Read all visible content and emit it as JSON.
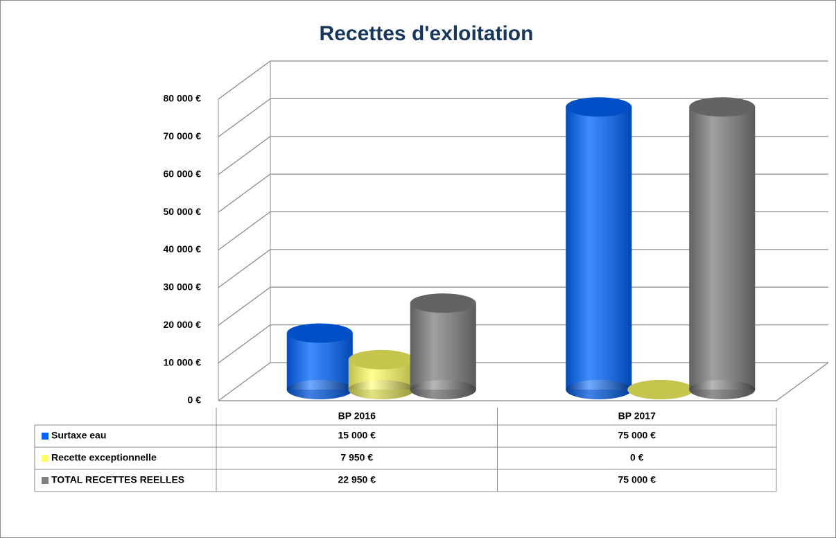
{
  "chart_data": {
    "type": "bar3d",
    "title": "Recettes d'exloitation",
    "categories": [
      "BP 2016",
      "BP 2017"
    ],
    "series": [
      {
        "name": "Surtaxe eau",
        "color": "#0066ff",
        "values": [
          15000,
          75000
        ],
        "value_labels": [
          "15 000 €",
          "75 000 €"
        ]
      },
      {
        "name": "Recette exceptionnelle",
        "color": "#ffff66",
        "values": [
          7950,
          0
        ],
        "value_labels": [
          "7 950 €",
          "0 €"
        ]
      },
      {
        "name": "TOTAL RECETTES REELLES",
        "color": "#808080",
        "values": [
          22950,
          75000
        ],
        "value_labels": [
          "22 950 €",
          "75 000 €"
        ]
      }
    ],
    "ylim": [
      0,
      80000
    ],
    "yticks": [
      {
        "value": 0,
        "label": "0 €"
      },
      {
        "value": 10000,
        "label": "10 000 €"
      },
      {
        "value": 20000,
        "label": "20 000 €"
      },
      {
        "value": 30000,
        "label": "30 000 €"
      },
      {
        "value": 40000,
        "label": "40 000 €"
      },
      {
        "value": 50000,
        "label": "50 000 €"
      },
      {
        "value": 60000,
        "label": "60 000 €"
      },
      {
        "value": 70000,
        "label": "70 000 €"
      },
      {
        "value": 80000,
        "label": "80 000 €"
      }
    ],
    "grid": true,
    "data_table": true
  }
}
